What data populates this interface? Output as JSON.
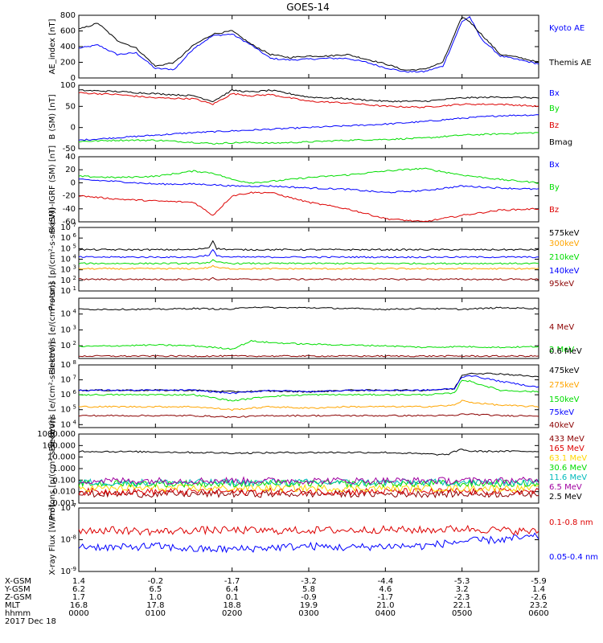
{
  "title": "GOES-14",
  "date_label": "2017 Dec 18",
  "colors": {
    "black": "#000000",
    "blue": "#0000ff",
    "red": "#dd0000",
    "green": "#00dd00",
    "orange": "#ffa500",
    "darkred": "#8b0000",
    "teal": "#00bbbb",
    "dodger": "#1e90ff",
    "purple": "#a000a0",
    "gold": "#ffd700"
  },
  "x_axis": {
    "ticks_hhmm": [
      "0000",
      "0100",
      "0200",
      "0300",
      "0400",
      "0500",
      "0600"
    ],
    "ephemeris": [
      {
        "label": "X-GSM",
        "values": [
          "1.4",
          "-0.2",
          "-1.7",
          "-3.2",
          "-4.4",
          "-5.3",
          "-5.9"
        ]
      },
      {
        "label": "Y-GSM",
        "values": [
          "6.2",
          "6.5",
          "6.4",
          "5.8",
          "4.6",
          "3.2",
          "1.4"
        ]
      },
      {
        "label": "Z-GSM",
        "values": [
          "1.7",
          "1.0",
          "0.1",
          "-0.9",
          "-1.7",
          "-2.3",
          "-2.6"
        ]
      },
      {
        "label": "MLT",
        "values": [
          "16.8",
          "17.8",
          "18.8",
          "19.9",
          "21.0",
          "22.1",
          "23.2"
        ]
      },
      {
        "label": "hhmm",
        "values": [
          "0000",
          "0100",
          "0200",
          "0300",
          "0400",
          "0500",
          "0600"
        ]
      }
    ]
  },
  "chart_data": [
    {
      "type": "line",
      "ylabel": "AE_index [nT]",
      "ylim": [
        0,
        800
      ],
      "yscale": "linear",
      "yticks": [
        "0",
        "200",
        "400",
        "600",
        "800"
      ],
      "x_hours": [
        0,
        0.25,
        0.5,
        0.75,
        1,
        1.25,
        1.5,
        1.75,
        2,
        2.25,
        2.5,
        2.75,
        3,
        3.25,
        3.5,
        3.75,
        4,
        4.25,
        4.5,
        4.75,
        5,
        5.1,
        5.25,
        5.5,
        5.75,
        6
      ],
      "series": [
        {
          "name": "Kyoto AE",
          "color_key": "blue",
          "values": [
            380,
            420,
            300,
            320,
            120,
            110,
            380,
            540,
            560,
            420,
            250,
            230,
            240,
            250,
            250,
            200,
            130,
            80,
            80,
            150,
            720,
            780,
            500,
            280,
            230,
            180
          ]
        },
        {
          "name": "Themis AE",
          "color_key": "black",
          "values": [
            620,
            700,
            480,
            380,
            150,
            200,
            420,
            560,
            600,
            430,
            300,
            260,
            280,
            280,
            300,
            240,
            180,
            100,
            110,
            200,
            780,
            720,
            560,
            300,
            260,
            200
          ]
        }
      ]
    },
    {
      "type": "line",
      "ylabel": "B (SM) [nT]",
      "ylim": [
        -50,
        100
      ],
      "yscale": "linear",
      "yticks": [
        "-50",
        "0",
        "50",
        "100"
      ],
      "x_hours": [
        0,
        0.5,
        1,
        1.5,
        1.75,
        2,
        2.25,
        2.5,
        3,
        3.5,
        4,
        4.5,
        5,
        5.5,
        6
      ],
      "series": [
        {
          "name": "Bx",
          "color_key": "blue",
          "values": [
            -30,
            -24,
            -18,
            -12,
            -10,
            -8,
            -6,
            -4,
            0,
            4,
            8,
            14,
            22,
            28,
            30
          ]
        },
        {
          "name": "By",
          "color_key": "green",
          "values": [
            -33,
            -30,
            -30,
            -35,
            -38,
            -36,
            -35,
            -37,
            -34,
            -30,
            -28,
            -25,
            -18,
            -15,
            -12
          ]
        },
        {
          "name": "Bz",
          "color_key": "red",
          "values": [
            82,
            78,
            70,
            68,
            55,
            80,
            75,
            78,
            62,
            58,
            50,
            48,
            55,
            55,
            50
          ]
        },
        {
          "name": "Bmag",
          "color_key": "black",
          "values": [
            88,
            85,
            80,
            75,
            62,
            88,
            84,
            88,
            72,
            68,
            62,
            62,
            70,
            72,
            70
          ]
        }
      ]
    },
    {
      "type": "line",
      "ylabel": "B (SM)-IGRF (SM) [nT]",
      "ylim": [
        -60,
        40
      ],
      "yscale": "linear",
      "yticks": [
        "-60",
        "-40",
        "-20",
        "0",
        "20",
        "40"
      ],
      "x_hours": [
        0,
        0.5,
        1,
        1.5,
        1.75,
        2,
        2.25,
        2.5,
        3,
        3.5,
        4,
        4.5,
        5,
        5.5,
        6
      ],
      "series": [
        {
          "name": "Bx",
          "color_key": "blue",
          "values": [
            5,
            2,
            -2,
            -2,
            -3,
            -5,
            -5,
            -5,
            -8,
            -10,
            -15,
            -12,
            -5,
            -8,
            -10
          ]
        },
        {
          "name": "By",
          "color_key": "green",
          "values": [
            10,
            8,
            10,
            18,
            15,
            5,
            0,
            2,
            8,
            12,
            18,
            22,
            12,
            5,
            0
          ]
        },
        {
          "name": "Bz",
          "color_key": "red",
          "values": [
            -20,
            -25,
            -28,
            -30,
            -50,
            -20,
            -15,
            -15,
            -30,
            -40,
            -55,
            -60,
            -50,
            -42,
            -40
          ]
        }
      ]
    },
    {
      "type": "line",
      "ylabel": "Protons [p/(cm²-s-sr-keV)]",
      "ylim": [
        1,
        7
      ],
      "yscale": "log",
      "ytick_exponents": [
        1,
        2,
        3,
        4,
        5,
        6,
        7
      ],
      "x_hours": [
        0,
        0.5,
        1,
        1.5,
        1.7,
        1.75,
        1.8,
        2,
        2.5,
        3,
        3.5,
        4,
        4.5,
        5,
        5.5,
        6
      ],
      "series": [
        {
          "name": "575keV",
          "color_key": "black",
          "values": [
            4.9,
            4.9,
            4.9,
            4.9,
            5.1,
            5.8,
            5.0,
            4.9,
            4.9,
            4.9,
            4.9,
            4.9,
            4.9,
            4.9,
            4.9,
            4.9
          ]
        },
        {
          "name": "300keV",
          "color_key": "orange",
          "values": [
            3.1,
            3.1,
            3.1,
            3.1,
            3.2,
            3.4,
            3.2,
            3.1,
            3.1,
            3.1,
            3.1,
            3.1,
            3.1,
            3.1,
            3.1,
            3.1
          ]
        },
        {
          "name": "210keV",
          "color_key": "green",
          "values": [
            3.6,
            3.6,
            3.6,
            3.6,
            3.7,
            3.9,
            3.7,
            3.6,
            3.6,
            3.6,
            3.6,
            3.6,
            3.6,
            3.6,
            3.6,
            3.6
          ]
        },
        {
          "name": "140keV",
          "color_key": "blue",
          "values": [
            4.2,
            4.2,
            4.2,
            4.2,
            4.4,
            4.9,
            4.3,
            4.2,
            4.2,
            4.2,
            4.2,
            4.2,
            4.2,
            4.2,
            4.2,
            4.2
          ]
        },
        {
          "name": "95keV",
          "color_key": "darkred",
          "values": [
            2.1,
            2.1,
            2.1,
            2.1,
            2.1,
            2.2,
            2.1,
            2.1,
            2.1,
            2.1,
            2.1,
            2.1,
            2.1,
            2.1,
            2.1,
            2.1
          ]
        }
      ]
    },
    {
      "type": "line",
      "ylabel": "Electrons [e/(cm²-s-sr)]",
      "ylim": [
        1.2,
        5
      ],
      "yscale": "log",
      "ytick_exponents": [
        2,
        3,
        4
      ],
      "x_hours": [
        0,
        0.5,
        1,
        1.5,
        2,
        2.25,
        2.5,
        3,
        3.5,
        4,
        4.5,
        5,
        5.5,
        6
      ],
      "series": [
        {
          "name": "4 MeV",
          "color_key": "darkred",
          "values": [
            1.35,
            1.35,
            1.35,
            1.35,
            1.35,
            1.35,
            1.35,
            1.35,
            1.35,
            1.35,
            1.35,
            1.35,
            1.35,
            1.35
          ]
        },
        {
          "name": "2 MeV",
          "color_key": "green",
          "values": [
            1.95,
            2.0,
            2.05,
            2.0,
            1.8,
            2.3,
            2.2,
            2.1,
            2.05,
            2.0,
            1.9,
            1.95,
            1.9,
            1.95
          ]
        },
        {
          "name": "0.6 MeV",
          "color_key": "black",
          "values": [
            4.3,
            4.3,
            4.3,
            4.35,
            4.3,
            4.45,
            4.4,
            4.4,
            4.35,
            4.3,
            4.35,
            4.3,
            4.4,
            4.35
          ]
        }
      ]
    },
    {
      "type": "line",
      "ylabel": "Electrons [e/(cm²-s-sr-keV)]",
      "ylim": [
        3.8,
        8
      ],
      "yscale": "log",
      "ytick_exponents": [
        4,
        5,
        6,
        7,
        8
      ],
      "x_hours": [
        0,
        0.5,
        1,
        1.5,
        2,
        2.5,
        3,
        3.5,
        4,
        4.5,
        4.9,
        5,
        5.1,
        5.5,
        6
      ],
      "series": [
        {
          "name": "475keV",
          "color_key": "black",
          "values": [
            6.3,
            6.3,
            6.3,
            6.3,
            6.2,
            6.25,
            6.2,
            6.3,
            6.3,
            6.3,
            6.4,
            7.3,
            7.45,
            7.4,
            7.2
          ]
        },
        {
          "name": "275keV",
          "color_key": "orange",
          "values": [
            5.2,
            5.2,
            5.2,
            5.2,
            5.0,
            5.2,
            5.1,
            5.2,
            5.2,
            5.2,
            5.3,
            5.6,
            5.5,
            5.3,
            5.2
          ]
        },
        {
          "name": "150keV",
          "color_key": "green",
          "values": [
            6.0,
            6.0,
            6.0,
            6.0,
            5.6,
            5.9,
            6.0,
            6.0,
            6.0,
            6.0,
            6.1,
            7.0,
            6.9,
            6.3,
            6.2
          ]
        },
        {
          "name": "75keV",
          "color_key": "blue",
          "values": [
            6.3,
            6.3,
            6.3,
            6.3,
            6.1,
            6.3,
            6.2,
            6.3,
            6.3,
            6.3,
            6.4,
            7.2,
            7.3,
            6.9,
            6.5
          ]
        },
        {
          "name": "40keV",
          "color_key": "darkred",
          "values": [
            4.6,
            4.6,
            4.6,
            4.6,
            4.5,
            4.6,
            4.6,
            4.6,
            4.6,
            4.6,
            4.6,
            4.7,
            4.7,
            4.6,
            4.6
          ]
        }
      ]
    },
    {
      "type": "line",
      "ylabel": "Protons [p/(cm²-s-sr-keV)]",
      "ylim": [
        -3,
        3
      ],
      "yscale": "log",
      "yticks": [
        "0.001",
        "0.010",
        "0.100",
        "1.000",
        "10.000",
        "100.000",
        "1000.000"
      ],
      "x_hours": [
        0,
        1,
        2,
        3,
        4,
        4.8,
        5,
        5.1,
        5.5,
        6
      ],
      "series": [
        {
          "name": "433 MeV",
          "color_key": "darkred",
          "values": [
            -2.2,
            -2.2,
            -2.2,
            -2.2,
            -2.2,
            -2.2,
            -2.2,
            -2.2,
            -2.2,
            -2.2
          ]
        },
        {
          "name": "165 MeV",
          "color_key": "red",
          "values": [
            -2.0,
            -2.0,
            -2.0,
            -2.0,
            -2.0,
            -2.0,
            -2.0,
            -2.0,
            -2.0,
            -2.0
          ]
        },
        {
          "name": "63.1 MeV",
          "color_key": "gold",
          "values": [
            -1.7,
            -1.7,
            -1.7,
            -1.7,
            -1.7,
            -1.7,
            -1.7,
            -1.7,
            -1.7,
            -1.7
          ]
        },
        {
          "name": "30.6 MeV",
          "color_key": "green",
          "values": [
            -1.3,
            -1.3,
            -1.3,
            -1.3,
            -1.3,
            -1.3,
            -1.3,
            -1.3,
            -1.3,
            -1.3
          ]
        },
        {
          "name": "11.6 MeV",
          "color_key": "teal",
          "values": [
            -1.2,
            -1.2,
            -1.2,
            -1.2,
            -1.2,
            -1.2,
            -1.2,
            -1.2,
            -1.2,
            -1.2
          ]
        },
        {
          "name": "6.5 MeV",
          "color_key": "purple",
          "values": [
            -1.05,
            -1.05,
            -1.05,
            -1.05,
            -1.05,
            -1.05,
            -1.05,
            -1.05,
            -1.05,
            -1.05
          ]
        },
        {
          "name": "2.5 MeV",
          "color_key": "black",
          "values": [
            1.5,
            1.45,
            1.35,
            1.4,
            1.4,
            1.2,
            1.7,
            1.5,
            1.5,
            1.5
          ]
        }
      ]
    },
    {
      "type": "line",
      "ylabel": "X-ray Flux [W/m²]",
      "ylim": [
        -9,
        -7
      ],
      "yscale": "log",
      "ytick_exponents": [
        -9,
        -8,
        -7
      ],
      "x_hours": [
        0,
        0.5,
        1,
        1.5,
        2,
        2.5,
        3,
        3.5,
        4,
        4.5,
        5,
        5.5,
        6
      ],
      "series": [
        {
          "name": "0.1-0.8 nm",
          "color_key": "red",
          "values": [
            -7.7,
            -7.7,
            -7.75,
            -7.7,
            -7.7,
            -7.72,
            -7.7,
            -7.7,
            -7.68,
            -7.7,
            -7.65,
            -7.7,
            -7.75
          ]
        },
        {
          "name": "0.05-0.4 nm",
          "color_key": "blue",
          "values": [
            -8.2,
            -8.25,
            -8.2,
            -8.3,
            -8.3,
            -8.25,
            -8.2,
            -8.25,
            -8.2,
            -8.2,
            -8.05,
            -8.0,
            -7.9
          ]
        }
      ]
    }
  ]
}
